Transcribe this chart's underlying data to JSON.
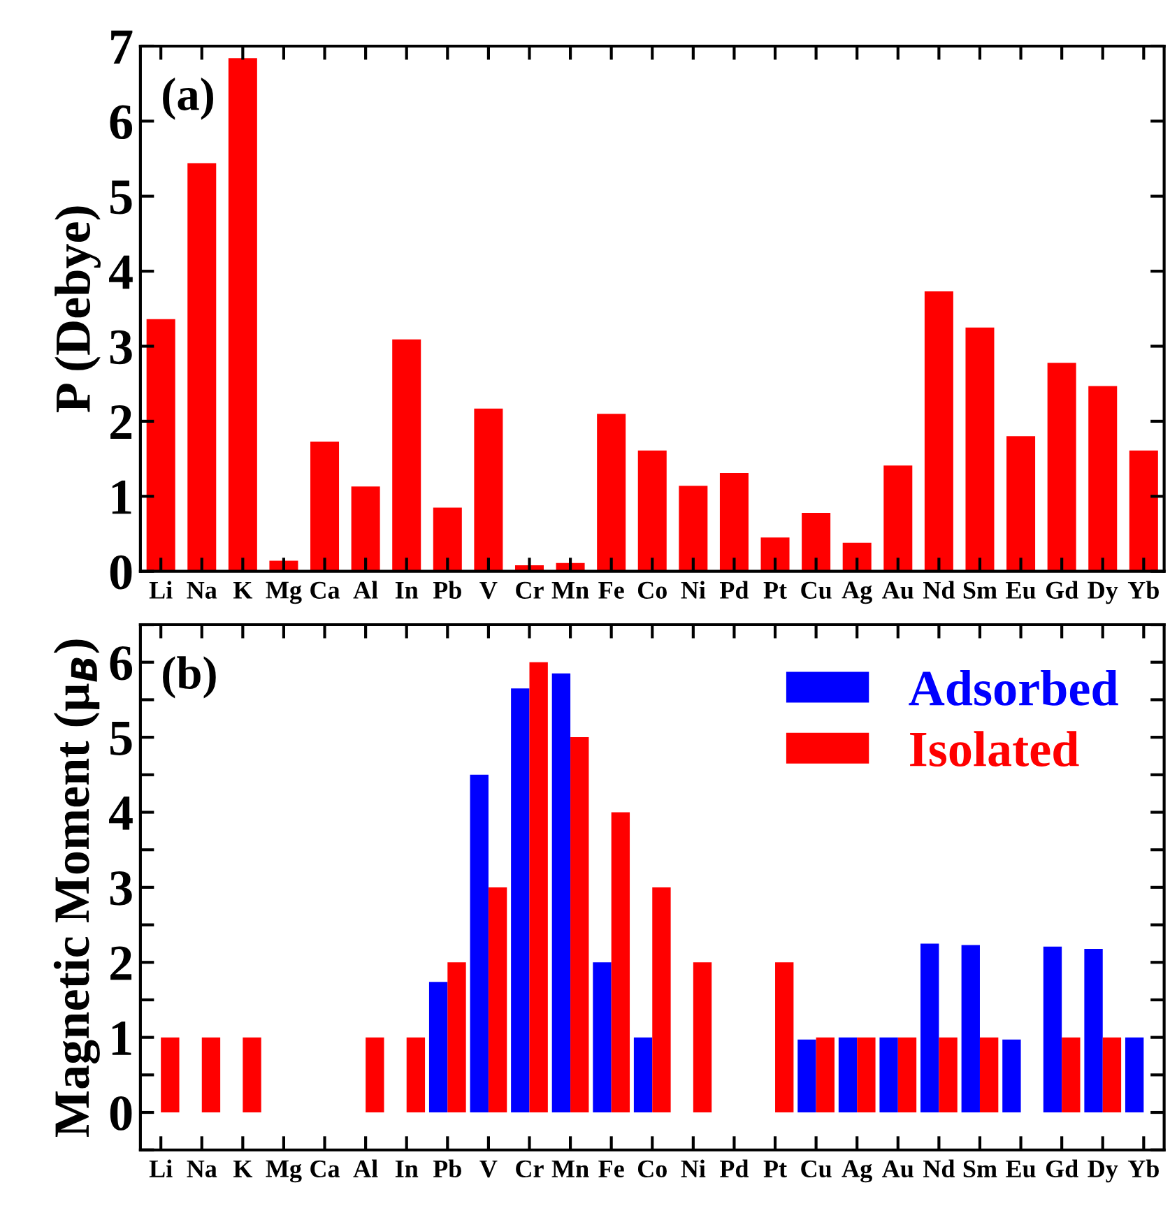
{
  "chart_data": [
    {
      "type": "bar",
      "ylabel": "P (Debye)",
      "annotations": [
        "(a)"
      ],
      "categories": [
        "Li",
        "Na",
        "K",
        "Mg",
        "Ca",
        "Al",
        "In",
        "Pb",
        "V",
        "Cr",
        "Mn",
        "Fe",
        "Co",
        "Ni",
        "Pd",
        "Pt",
        "Cu",
        "Ag",
        "Au",
        "Nd",
        "Sm",
        "Eu",
        "Gd",
        "Dy",
        "Yb"
      ],
      "series": [
        {
          "color": "#ff0000",
          "values": [
            3.36,
            5.44,
            6.84,
            0.14,
            1.73,
            1.13,
            3.09,
            0.85,
            2.17,
            0.08,
            0.11,
            2.1,
            1.61,
            1.14,
            1.31,
            0.45,
            0.78,
            0.38,
            1.41,
            3.73,
            3.25,
            1.8,
            2.78,
            2.47,
            1.61
          ]
        }
      ],
      "ylim": [
        0,
        7
      ],
      "yticks": [
        0,
        1,
        2,
        3,
        4,
        5,
        6,
        7
      ],
      "grid": false,
      "legend": false
    },
    {
      "type": "bar",
      "ylabel": "Magnetic Moment (μ$_{B}$)",
      "annotations": [
        "(b)"
      ],
      "categories": [
        "Li",
        "Na",
        "K",
        "Mg",
        "Ca",
        "Al",
        "In",
        "Pb",
        "V",
        "Cr",
        "Mn",
        "Fe",
        "Co",
        "Ni",
        "Pd",
        "Pt",
        "Cu",
        "Ag",
        "Au",
        "Nd",
        "Sm",
        "Eu",
        "Gd",
        "Dy",
        "Yb"
      ],
      "series": [
        {
          "name": "Adsorbed",
          "color": "#0000ff",
          "values": [
            0,
            0,
            0,
            0,
            0,
            0,
            0,
            1.74,
            4.5,
            5.65,
            5.85,
            2,
            1,
            0,
            0,
            0,
            0.97,
            1,
            1,
            2.25,
            2.23,
            0.97,
            2.21,
            2.18,
            1
          ]
        },
        {
          "name": "Isolated",
          "color": "#ff0000",
          "values": [
            1,
            1,
            1,
            0,
            0,
            1,
            1,
            2,
            3,
            6,
            5,
            4,
            3,
            2,
            0,
            2,
            1,
            1,
            1,
            1,
            1,
            0,
            1,
            1,
            0
          ]
        }
      ],
      "ylim": [
        -0.5,
        6.5
      ],
      "yticks": [
        {
          "value": -0.5,
          "label": null
        },
        0,
        {
          "value": 0.5,
          "label": null
        },
        1,
        {
          "value": 1.5,
          "label": null
        },
        2,
        {
          "value": 2.5,
          "label": null
        },
        3,
        {
          "value": 3.5,
          "label": null
        },
        4,
        {
          "value": 4.5,
          "label": null
        },
        5,
        {
          "value": 5.5,
          "label": null
        },
        6,
        {
          "value": 6.5,
          "label": null
        }
      ],
      "grid": false,
      "legend": "top right"
    }
  ]
}
